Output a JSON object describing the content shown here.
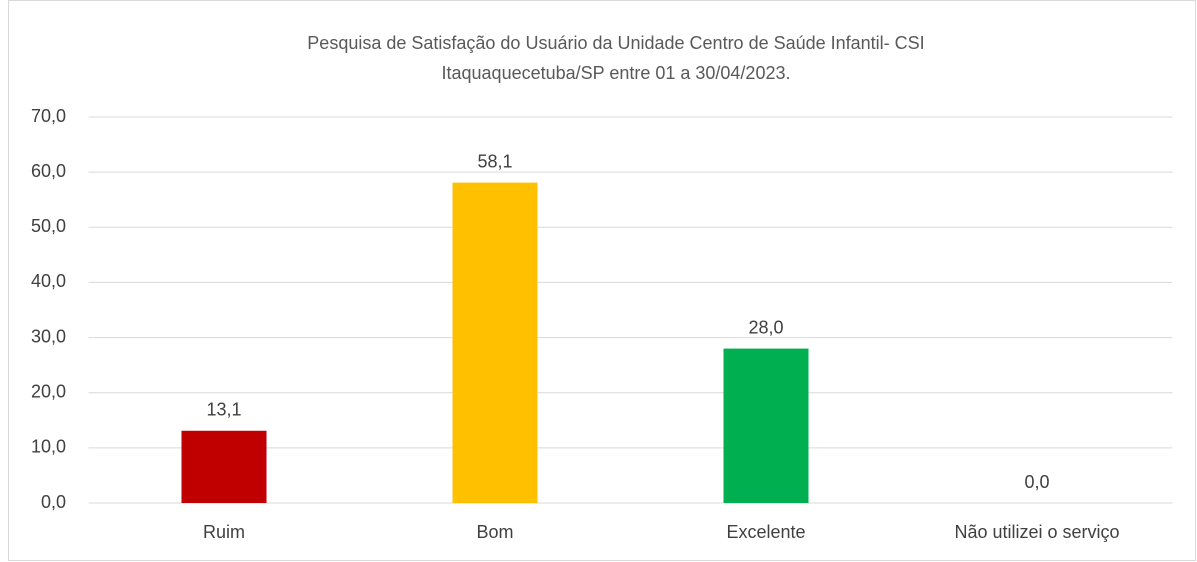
{
  "chart_data": {
    "type": "bar",
    "title": [
      "Pesquisa de Satisfação do Usuário da Unidade Centro de Saúde Infantil- CSI",
      "Itaquaquecetuba/SP entre 01 a 30/04/2023."
    ],
    "categories": [
      "Ruim",
      "Bom",
      "Excelente",
      "Não utilizei o serviço"
    ],
    "values": [
      13.1,
      58.1,
      28.0,
      0.0
    ],
    "value_labels": [
      "13,1",
      "58,1",
      "28,0",
      "0,0"
    ],
    "colors": [
      "#c00000",
      "#ffc000",
      "#00b050",
      "#4472c4"
    ],
    "ylim": [
      0,
      70
    ],
    "yticks": [
      {
        "value": 0,
        "label": "0,0"
      },
      {
        "value": 10,
        "label": "10,0"
      },
      {
        "value": 20,
        "label": "20,0"
      },
      {
        "value": 30,
        "label": "30,0"
      },
      {
        "value": 40,
        "label": "40,0"
      },
      {
        "value": 50,
        "label": "50,0"
      },
      {
        "value": 60,
        "label": "60,0"
      },
      {
        "value": 70,
        "label": "70,0"
      }
    ],
    "grid": true
  }
}
